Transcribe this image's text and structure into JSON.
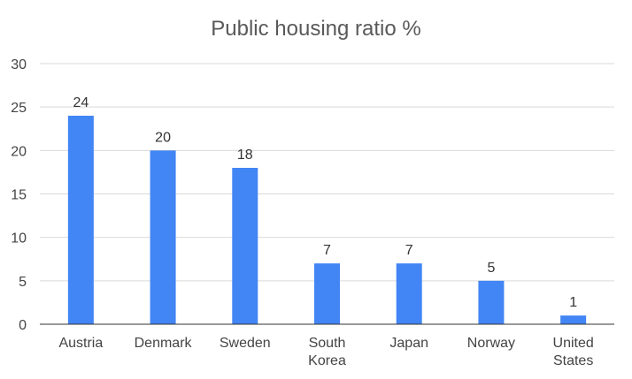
{
  "chart_data": {
    "type": "bar",
    "title": "Public housing ratio %",
    "xlabel": "",
    "ylabel": "",
    "categories": [
      "Austria",
      "Denmark",
      "Sweden",
      "South Korea",
      "Japan",
      "Norway",
      "United States"
    ],
    "category_lines": [
      [
        "Austria"
      ],
      [
        "Denmark"
      ],
      [
        "Sweden"
      ],
      [
        "South",
        "Korea"
      ],
      [
        "Japan"
      ],
      [
        "Norway"
      ],
      [
        "United",
        "States"
      ]
    ],
    "values": [
      24,
      20,
      18,
      7,
      7,
      5,
      1
    ],
    "ylim": [
      0,
      30
    ],
    "yticks": [
      0,
      5,
      10,
      15,
      20,
      25,
      30
    ],
    "grid": true,
    "legend": "none",
    "bar_color": "#4285f4"
  }
}
